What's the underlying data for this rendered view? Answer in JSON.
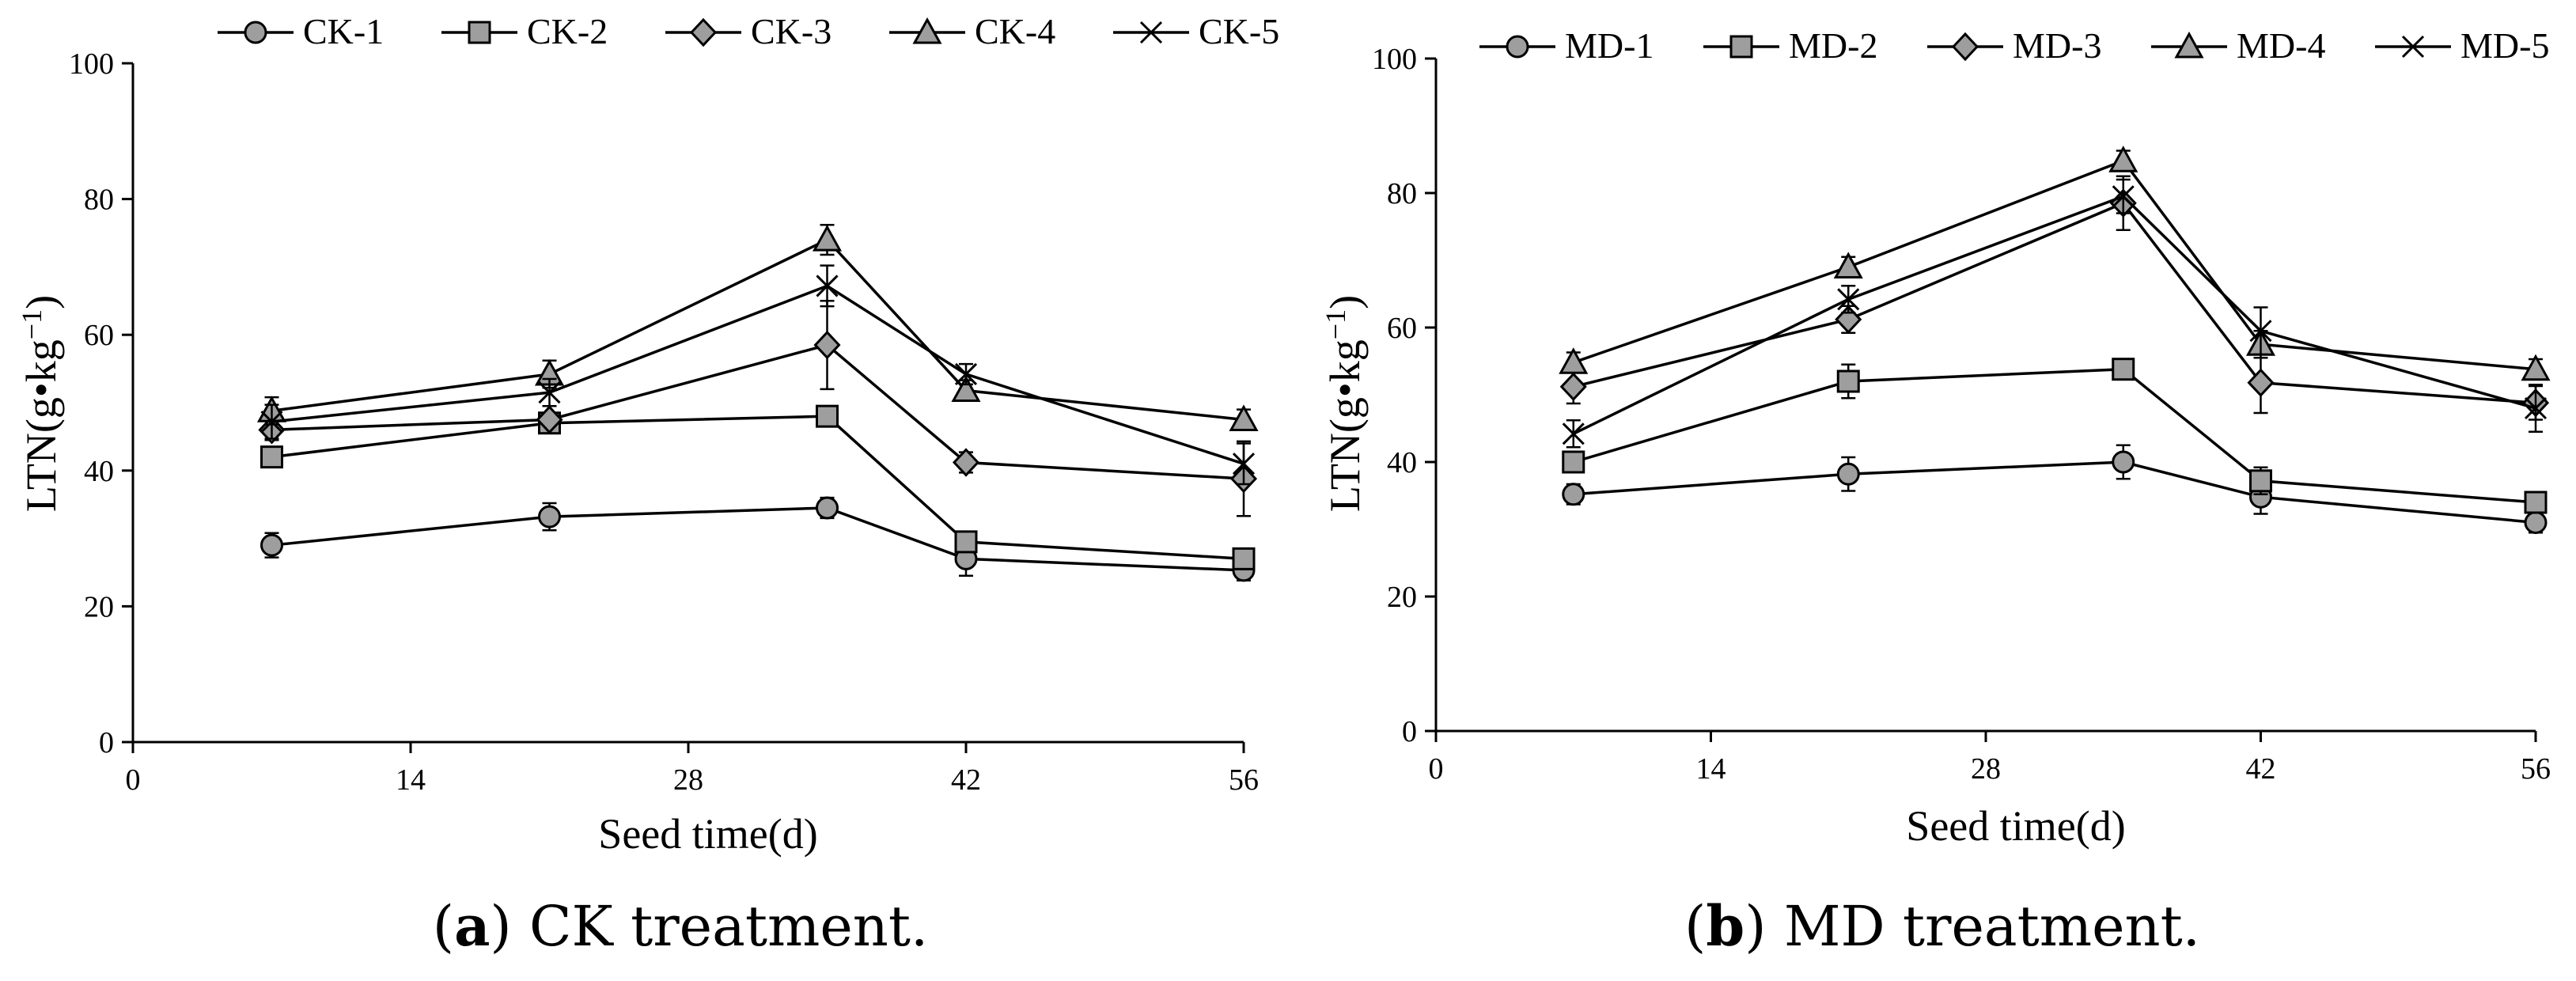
{
  "chart_data": [
    {
      "type": "line",
      "caption_letter": "a",
      "caption_rest": " CK treatment.",
      "xlabel": "Seed time(d)",
      "ylabel_main": "LTN(g•kg",
      "ylabel_sup": "−1",
      "ylabel_end": ")",
      "xlim": [
        0,
        56
      ],
      "ylim": [
        0,
        100
      ],
      "xticks": [
        0,
        14,
        28,
        42,
        56
      ],
      "yticks": [
        0,
        20,
        40,
        60,
        80,
        100
      ],
      "x": [
        7,
        21,
        35,
        42,
        56
      ],
      "legend_position": "top",
      "series": [
        {
          "name": "CK-1",
          "marker": "circle",
          "values": [
            29,
            33.2,
            34.5,
            27,
            25.3
          ],
          "err": [
            1.8,
            2,
            1.5,
            2.5,
            1.5
          ]
        },
        {
          "name": "CK-2",
          "marker": "square",
          "values": [
            42,
            47,
            48,
            29.5,
            27
          ],
          "err": [
            1,
            1.5,
            1.2,
            1.5,
            1
          ]
        },
        {
          "name": "CK-3",
          "marker": "diamond",
          "values": [
            46,
            47.5,
            58.5,
            41.2,
            38.8
          ],
          "err": [
            1.5,
            2,
            6.5,
            1.5,
            5.5
          ]
        },
        {
          "name": "CK-4",
          "marker": "triangle",
          "values": [
            48.8,
            54.2,
            74,
            51.8,
            47.5
          ],
          "err": [
            2,
            2,
            2.2,
            1.5,
            1.5
          ]
        },
        {
          "name": "CK-5",
          "marker": "x",
          "values": [
            47.2,
            51.5,
            67.2,
            54.2,
            41
          ],
          "err": [
            2.5,
            2,
            3,
            1.5,
            3
          ]
        }
      ]
    },
    {
      "type": "line",
      "caption_letter": "b",
      "caption_rest": " MD treatment.",
      "xlabel": "Seed time(d)",
      "ylabel_main": "LTN(g•kg",
      "ylabel_sup": "−1",
      "ylabel_end": ")",
      "xlim": [
        0,
        56
      ],
      "ylim": [
        0,
        100
      ],
      "xticks": [
        0,
        14,
        28,
        42,
        56
      ],
      "yticks": [
        0,
        20,
        40,
        60,
        80,
        100
      ],
      "x": [
        7,
        21,
        35,
        42,
        56
      ],
      "legend_position": "top",
      "series": [
        {
          "name": "MD-1",
          "marker": "circle",
          "values": [
            35.2,
            38.2,
            40,
            34.8,
            31
          ],
          "err": [
            1.5,
            2.5,
            2.5,
            2.5,
            1.5
          ]
        },
        {
          "name": "MD-2",
          "marker": "square",
          "values": [
            40,
            52,
            53.8,
            37.2,
            34
          ],
          "err": [
            1.5,
            2.5,
            1.5,
            2,
            1.5
          ]
        },
        {
          "name": "MD-3",
          "marker": "diamond",
          "values": [
            51.2,
            61.2,
            78.5,
            51.8,
            48.8
          ],
          "err": [
            2.5,
            2,
            4,
            4.5,
            2.5
          ]
        },
        {
          "name": "MD-4",
          "marker": "triangle",
          "values": [
            54.8,
            69,
            84.8,
            57.5,
            53.8
          ],
          "err": [
            1.5,
            1.5,
            1.5,
            2,
            1.5
          ]
        },
        {
          "name": "MD-5",
          "marker": "x",
          "values": [
            44.2,
            64.2,
            79.5,
            59.5,
            48
          ],
          "err": [
            2,
            2,
            2.5,
            3.5,
            3.5
          ]
        }
      ]
    }
  ]
}
